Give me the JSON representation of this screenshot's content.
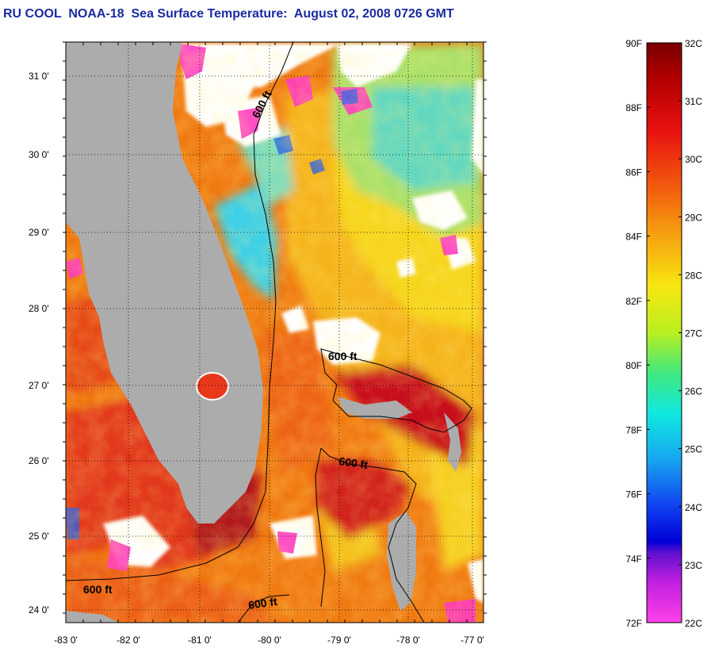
{
  "title": "RU COOL  NOAA-18  Sea Surface Temperature:  August 02, 2008 0726 GMT",
  "map": {
    "lon_ticks": [
      "-83 0'",
      "-82 0'",
      "-81 0'",
      "-80 0'",
      "-79 0'",
      "-78 0'",
      "-77 0'"
    ],
    "lat_ticks": [
      "31 0'",
      "30 0'",
      "29 0'",
      "28 0'",
      "27 0'",
      "26 0'",
      "25 0'",
      "24 0'"
    ],
    "contour_labels": [
      "600 ft",
      "600 ft",
      "600 ft",
      "600 ft",
      "600 ft"
    ],
    "colors": {
      "land": "#acacac",
      "cloud": "#ffffff",
      "warm": "#f26a10",
      "hot": "#d01812",
      "yellow": "#f5c21a",
      "cool": "#6ee0c8",
      "magenta": "#ff40c0"
    }
  },
  "color_scale": {
    "fahrenheit_labels": [
      "90F",
      "88F",
      "86F",
      "84F",
      "82F",
      "80F",
      "78F",
      "76F",
      "74F",
      "72F"
    ],
    "celsius_labels": [
      "32C",
      "31C",
      "30C",
      "29C",
      "28C",
      "27C",
      "26C",
      "25C",
      "24C",
      "23C",
      "22C"
    ],
    "min_f": 72,
    "max_f": 90,
    "min_c": 22,
    "max_c": 32
  }
}
